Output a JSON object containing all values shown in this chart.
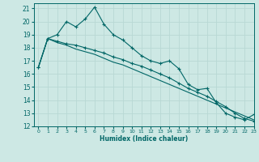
{
  "xlabel": "Humidex (Indice chaleur)",
  "ylabel": "",
  "background_color": "#cde8e4",
  "grid_color": "#b8d8d4",
  "line_color": "#006666",
  "xlim": [
    -0.5,
    23
  ],
  "ylim": [
    12,
    21.4
  ],
  "yticks": [
    12,
    13,
    14,
    15,
    16,
    17,
    18,
    19,
    20,
    21
  ],
  "xticks": [
    0,
    1,
    2,
    3,
    4,
    5,
    6,
    7,
    8,
    9,
    10,
    11,
    12,
    13,
    14,
    15,
    16,
    17,
    18,
    19,
    20,
    21,
    22,
    23
  ],
  "series1_x": [
    0,
    1,
    2,
    3,
    4,
    5,
    6,
    7,
    8,
    9,
    10,
    11,
    12,
    13,
    14,
    15,
    16,
    17,
    18,
    19,
    20,
    21,
    22,
    23
  ],
  "series1_y": [
    16.5,
    18.7,
    19.0,
    20.0,
    19.6,
    20.2,
    21.1,
    19.8,
    19.0,
    18.6,
    18.0,
    17.4,
    17.0,
    16.8,
    17.0,
    16.4,
    15.2,
    14.8,
    14.9,
    13.8,
    13.0,
    12.7,
    12.5,
    12.9
  ],
  "series2_x": [
    0,
    1,
    2,
    3,
    4,
    5,
    6,
    7,
    8,
    9,
    10,
    11,
    12,
    13,
    14,
    15,
    16,
    17,
    18,
    19,
    20,
    21,
    22,
    23
  ],
  "series2_y": [
    16.5,
    18.7,
    18.5,
    18.3,
    18.2,
    18.0,
    17.8,
    17.6,
    17.3,
    17.1,
    16.8,
    16.6,
    16.3,
    16.0,
    15.7,
    15.3,
    14.9,
    14.6,
    14.3,
    13.9,
    13.5,
    13.0,
    12.6,
    12.4
  ],
  "series3_x": [
    0,
    1,
    2,
    3,
    4,
    5,
    6,
    7,
    8,
    9,
    10,
    11,
    12,
    13,
    14,
    15,
    16,
    17,
    18,
    19,
    20,
    21,
    22,
    23
  ],
  "series3_y": [
    16.5,
    18.7,
    18.4,
    18.2,
    17.9,
    17.7,
    17.5,
    17.2,
    16.9,
    16.7,
    16.4,
    16.1,
    15.8,
    15.5,
    15.2,
    14.9,
    14.6,
    14.3,
    14.0,
    13.7,
    13.4,
    13.1,
    12.8,
    12.5
  ]
}
